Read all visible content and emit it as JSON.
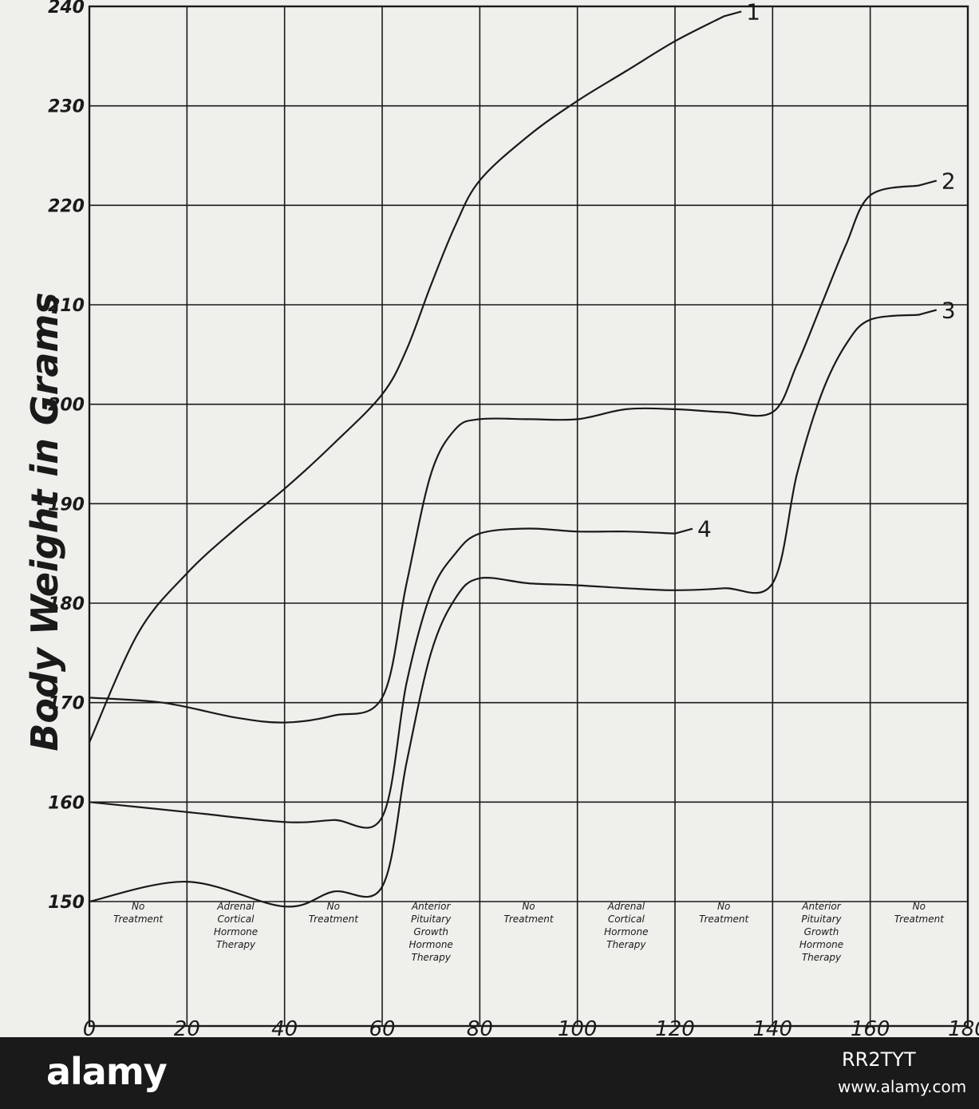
{
  "chart_data": {
    "type": "line",
    "title": "",
    "xlabel": "",
    "ylabel": "Body Weight in Grams",
    "xlim": [
      0,
      180
    ],
    "ylim": [
      150,
      240
    ],
    "x_ticks": [
      "0",
      "20",
      "40",
      "60",
      "80",
      "100",
      "120",
      "140",
      "160",
      "180"
    ],
    "y_ticks": [
      "150",
      "160",
      "170",
      "180",
      "190",
      "200",
      "210",
      "220",
      "230",
      "240"
    ],
    "grid": true,
    "phases": [
      {
        "label": [
          "No",
          "Treatment"
        ],
        "x_range": [
          0,
          20
        ]
      },
      {
        "label": [
          "Adrenal",
          "Cortical",
          "Hormone",
          "Therapy"
        ],
        "x_range": [
          20,
          40
        ]
      },
      {
        "label": [
          "No",
          "Treatment"
        ],
        "x_range": [
          40,
          60
        ]
      },
      {
        "label": [
          "Anterior",
          "Pituitary",
          "Growth",
          "Hormone",
          "Therapy"
        ],
        "x_range": [
          60,
          80
        ]
      },
      {
        "label": [
          "No",
          "Treatment"
        ],
        "x_range": [
          80,
          100
        ]
      },
      {
        "label": [
          "Adrenal",
          "Cortical",
          "Hormone",
          "Therapy"
        ],
        "x_range": [
          100,
          120
        ]
      },
      {
        "label": [
          "No",
          "Treatment"
        ],
        "x_range": [
          120,
          140
        ]
      },
      {
        "label": [
          "Anterior",
          "Pituitary",
          "Growth",
          "Hormone",
          "Therapy"
        ],
        "x_range": [
          140,
          160
        ]
      },
      {
        "label": [
          "No",
          "Treatment"
        ],
        "x_range": [
          160,
          180
        ]
      }
    ],
    "series": [
      {
        "name": "1",
        "points": [
          [
            0,
            166
          ],
          [
            10,
            177
          ],
          [
            20,
            183
          ],
          [
            30,
            187.5
          ],
          [
            40,
            191.5
          ],
          [
            50,
            196
          ],
          [
            60,
            201
          ],
          [
            65,
            205.5
          ],
          [
            70,
            212
          ],
          [
            75,
            218
          ],
          [
            80,
            222.5
          ],
          [
            90,
            227
          ],
          [
            100,
            230.5
          ],
          [
            110,
            233.5
          ],
          [
            120,
            236.5
          ],
          [
            130,
            239
          ]
        ]
      },
      {
        "name": "2",
        "points": [
          [
            0,
            170.5
          ],
          [
            15,
            170
          ],
          [
            30,
            168.5
          ],
          [
            40,
            168
          ],
          [
            50,
            168.7
          ],
          [
            60,
            170.5
          ],
          [
            65,
            182
          ],
          [
            70,
            193
          ],
          [
            75,
            197.5
          ],
          [
            80,
            198.5
          ],
          [
            90,
            198.5
          ],
          [
            100,
            198.5
          ],
          [
            110,
            199.5
          ],
          [
            120,
            199.5
          ],
          [
            130,
            199.2
          ],
          [
            140,
            199.2
          ],
          [
            145,
            204
          ],
          [
            150,
            210
          ],
          [
            155,
            216
          ],
          [
            160,
            221
          ],
          [
            170,
            222
          ]
        ]
      },
      {
        "name": "3",
        "points": [
          [
            0,
            150
          ],
          [
            20,
            152
          ],
          [
            40,
            149.5
          ],
          [
            50,
            151
          ],
          [
            60,
            151.5
          ],
          [
            65,
            164
          ],
          [
            70,
            175
          ],
          [
            75,
            180.5
          ],
          [
            80,
            182.5
          ],
          [
            90,
            182
          ],
          [
            100,
            181.8
          ],
          [
            110,
            181.5
          ],
          [
            120,
            181.3
          ],
          [
            130,
            181.5
          ],
          [
            140,
            182
          ],
          [
            145,
            193
          ],
          [
            150,
            201
          ],
          [
            155,
            206
          ],
          [
            160,
            208.5
          ],
          [
            170,
            209
          ]
        ]
      },
      {
        "name": "4",
        "points": [
          [
            0,
            160
          ],
          [
            20,
            159
          ],
          [
            40,
            158
          ],
          [
            50,
            158.2
          ],
          [
            60,
            158.5
          ],
          [
            65,
            172
          ],
          [
            70,
            181
          ],
          [
            75,
            185
          ],
          [
            80,
            187
          ],
          [
            90,
            187.5
          ],
          [
            100,
            187.2
          ],
          [
            110,
            187.2
          ],
          [
            120,
            187
          ]
        ]
      }
    ]
  },
  "watermark": {
    "brand": "alamy",
    "image_id": "RR2TYT",
    "site": "www.alamy.com"
  }
}
